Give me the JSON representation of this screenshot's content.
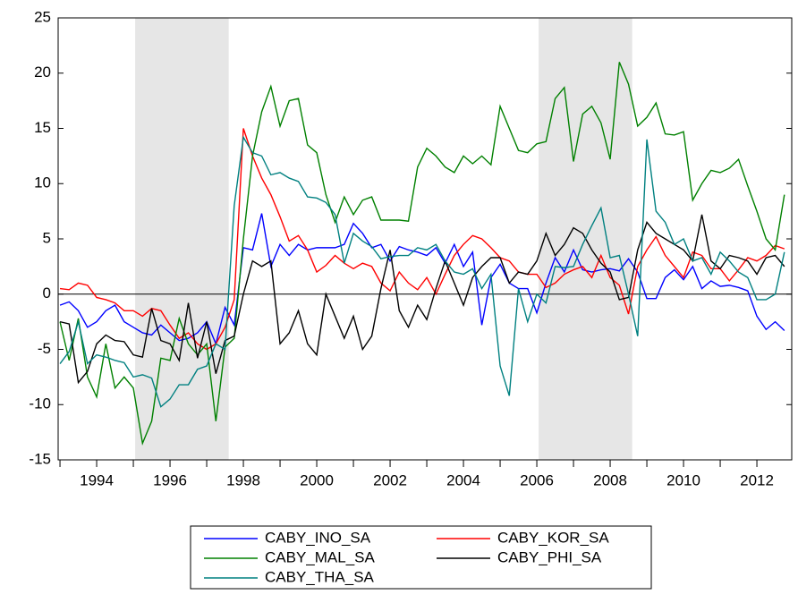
{
  "chart_data": {
    "type": "line",
    "x": [
      1993,
      1993.25,
      1993.5,
      1993.75,
      1994,
      1994.25,
      1994.5,
      1994.75,
      1995,
      1995.25,
      1995.5,
      1995.75,
      1996,
      1996.25,
      1996.5,
      1996.75,
      1997,
      1997.25,
      1997.5,
      1997.75,
      1998,
      1998.25,
      1998.5,
      1998.75,
      1999,
      1999.25,
      1999.5,
      1999.75,
      2000,
      2000.25,
      2000.5,
      2000.75,
      2001,
      2001.25,
      2001.5,
      2001.75,
      2002,
      2002.25,
      2002.5,
      2002.75,
      2003,
      2003.25,
      2003.5,
      2003.75,
      2004,
      2004.25,
      2004.5,
      2004.75,
      2005,
      2005.25,
      2005.5,
      2005.75,
      2006,
      2006.25,
      2006.5,
      2006.75,
      2007,
      2007.25,
      2007.5,
      2007.75,
      2008,
      2008.25,
      2008.5,
      2008.75,
      2009,
      2009.25,
      2009.5,
      2009.75,
      2010,
      2010.25,
      2010.5,
      2010.75,
      2011,
      2011.25,
      2011.5,
      2011.75,
      2012,
      2012.25,
      2012.5,
      2012.75
    ],
    "series": [
      {
        "name": "CABY_INO_SA",
        "color": "#0000ff",
        "values": [
          -1,
          -0.7,
          -1.5,
          -3,
          -2.5,
          -1.5,
          -1,
          -2.5,
          -3,
          -3.5,
          -3.7,
          -2.8,
          -3.5,
          -4.2,
          -4,
          -3.5,
          -2.5,
          -4.5,
          -1.2,
          -2.8,
          4.2,
          4,
          7.3,
          2.5,
          4.5,
          3.5,
          4.5,
          4,
          4.2,
          4.2,
          4.2,
          4.5,
          6.4,
          5.5,
          4.2,
          4.5,
          3,
          4.3,
          4,
          3.8,
          3.5,
          4.2,
          2.8,
          4.5,
          2.5,
          3.8,
          -2.8,
          1.5,
          2.7,
          1,
          0.5,
          0.5,
          -1.7,
          1,
          3.3,
          2,
          4,
          2.2,
          2,
          2.2,
          2.3,
          2.1,
          3.2,
          2,
          -0.4,
          -0.4,
          1.5,
          2.2,
          1.3,
          2.5,
          0.5,
          1.2,
          0.7,
          0.8,
          0.6,
          0.3,
          -2,
          -3.2,
          -2.5,
          -3.3
        ]
      },
      {
        "name": "CABY_KOR_SA",
        "color": "#ff0000",
        "values": [
          0.5,
          0.4,
          1,
          0.8,
          -0.3,
          -0.5,
          -0.8,
          -1.5,
          -1.5,
          -2,
          -1.3,
          -1.5,
          -2.8,
          -4,
          -3.5,
          -4.5,
          -5,
          -4.5,
          -3,
          -0.5,
          15,
          12.5,
          10.5,
          9,
          7,
          4.8,
          5.3,
          4,
          2,
          2.6,
          3.5,
          2.8,
          2.3,
          2.8,
          2.5,
          1,
          0.3,
          2,
          1,
          0.4,
          1.5,
          0,
          1.8,
          3.5,
          4.5,
          5.3,
          5,
          4.2,
          3.3,
          3,
          2,
          1.8,
          1.8,
          0.6,
          1,
          1.8,
          2.2,
          2.5,
          1.5,
          3.5,
          1.5,
          0.8,
          -1.8,
          2.5,
          4,
          5.2,
          3.5,
          2.5,
          1.5,
          3.8,
          3.5,
          2.3,
          2.3,
          1.2,
          2.2,
          3.3,
          3,
          3.5,
          4.4,
          4.1
        ]
      },
      {
        "name": "CABY_MAL_SA",
        "color": "#008000",
        "values": [
          -2.5,
          -6,
          -2.2,
          -7.5,
          -9.3,
          -4.5,
          -8.5,
          -7.5,
          -8.5,
          -13.5,
          -11.5,
          -5.8,
          -6,
          -2.2,
          -4.5,
          -5.5,
          -4.5,
          -11.5,
          -4.8,
          -4,
          5,
          12.5,
          16.5,
          18.8,
          15.2,
          17.5,
          17.7,
          13.5,
          12.8,
          9,
          6.5,
          8.8,
          7.2,
          8.5,
          8.8,
          6.7,
          6.7,
          6.7,
          6.6,
          11.5,
          13.2,
          12.5,
          11.5,
          11,
          12.5,
          11.8,
          12.5,
          11.7,
          17,
          15,
          13,
          12.8,
          13.6,
          13.8,
          17.7,
          18.7,
          12,
          16.3,
          17,
          15.5,
          12.2,
          21,
          19,
          15.2,
          16,
          17.3,
          14.5,
          14.4,
          14.7,
          8.5,
          10,
          11.2,
          11,
          11.4,
          12.2,
          9.8,
          7.5,
          5,
          4,
          9
        ]
      },
      {
        "name": "CABY_PHI_SA",
        "color": "#000000",
        "values": [
          -2.5,
          -2.7,
          -8,
          -7,
          -4.5,
          -3.7,
          -4.2,
          -4.3,
          -5.5,
          -5.7,
          -1.3,
          -4.2,
          -4.5,
          -6,
          -0.8,
          -5.8,
          -2.5,
          -7.2,
          -4.2,
          -3.8,
          0,
          3,
          2.5,
          3,
          -4.5,
          -3.5,
          -1.5,
          -4.5,
          -5.5,
          0,
          -2,
          -4,
          -2,
          -5,
          -3.8,
          0.5,
          4,
          -1.5,
          -3,
          -1,
          -2.3,
          0.5,
          3,
          1,
          -1,
          1.5,
          2.5,
          3.3,
          3.3,
          1,
          2,
          1.8,
          3,
          5.5,
          3.5,
          4.5,
          6,
          5.5,
          4,
          2.8,
          2,
          -0.5,
          -0.3,
          4,
          6.5,
          5.5,
          5,
          4.5,
          4,
          3,
          7.2,
          3,
          2.3,
          3.5,
          3.3,
          3,
          1.8,
          3.3,
          3.5,
          2.5
        ]
      },
      {
        "name": "CABY_THA_SA",
        "color": "#008080",
        "values": [
          -6.3,
          -5.2,
          -2.5,
          -6.3,
          -5.5,
          -5.7,
          -6,
          -6.2,
          -7.5,
          -7.3,
          -7.6,
          -10.2,
          -9.5,
          -8.2,
          -8.2,
          -6.8,
          -6.5,
          -4.5,
          -5,
          8,
          14.2,
          12.8,
          12.5,
          10.8,
          11,
          10.5,
          10.2,
          8.8,
          8.7,
          8.3,
          7.2,
          2.8,
          5.5,
          4.8,
          4.3,
          3.2,
          3.4,
          3.5,
          3.5,
          4.2,
          4,
          4.5,
          3,
          2,
          1.8,
          2.3,
          0.5,
          1.8,
          -6.5,
          -9.2,
          0.5,
          -2.5,
          0,
          -0.8,
          2.5,
          2.4,
          2.5,
          4.5,
          6.2,
          7.8,
          3.3,
          3.5,
          0,
          -3.8,
          14,
          7.5,
          6.5,
          4.5,
          5,
          3,
          3.3,
          1.8,
          3.8,
          3,
          2,
          1.5,
          -0.5,
          -0.5,
          0,
          3.8
        ]
      }
    ],
    "xlim": [
      1992.95,
      2012.95
    ],
    "ylim": [
      -15,
      25
    ],
    "xticks": [
      1994,
      1996,
      1998,
      2000,
      2002,
      2004,
      2006,
      2008,
      2010,
      2012
    ],
    "xminorticks": [
      1993,
      1995,
      1997,
      1999,
      2001,
      2003,
      2005,
      2007,
      2009,
      2011
    ],
    "yticks": [
      -15,
      -10,
      -5,
      0,
      5,
      10,
      15,
      20,
      25
    ],
    "reference_line": 0,
    "shaded": [
      [
        1995.05,
        1997.6
      ],
      [
        2006.05,
        2008.6
      ]
    ],
    "shade_color": "#e6e6e6",
    "legend": "bottom"
  }
}
